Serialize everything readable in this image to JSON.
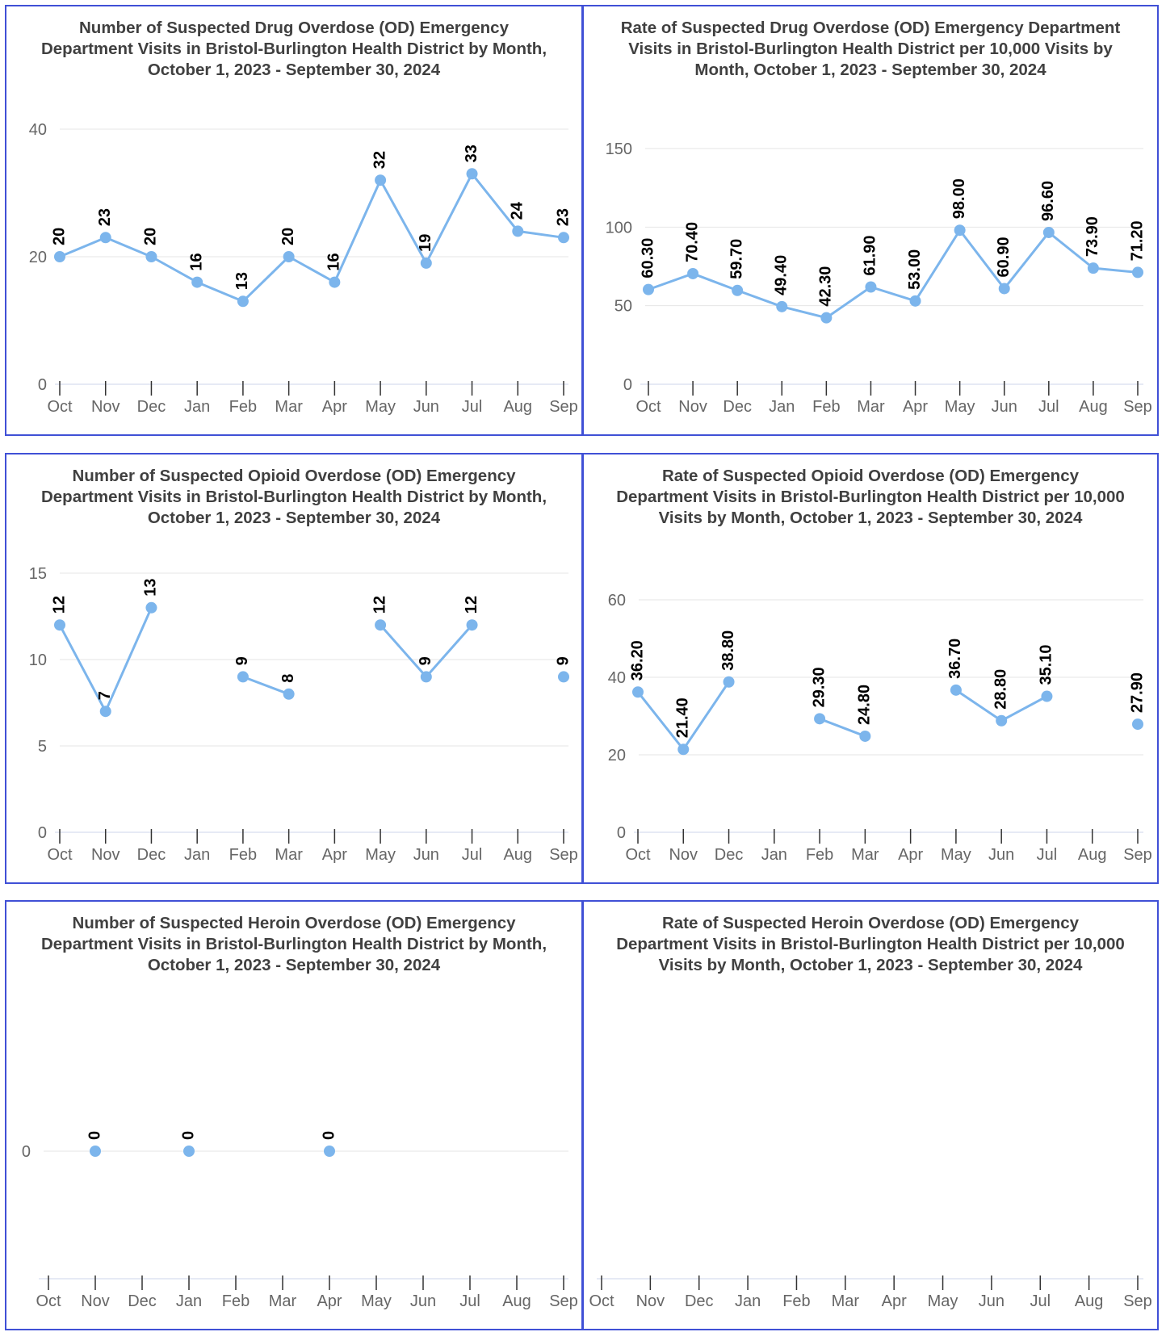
{
  "charts": [
    {
      "title": "Number of Suspected Drug Overdose (OD) Emergency Department Visits in Bristol-Burlington Health District by Month, October 1, 2023 - September 30, 2024"
    },
    {
      "title": "Rate of Suspected Drug Overdose (OD) Emergency Department Visits in Bristol-Burlington Health District per 10,000 Visits by Month, October 1, 2023 - September 30, 2024"
    },
    {
      "title": "Number of Suspected Opioid Overdose (OD) Emergency Department Visits in Bristol-Burlington Health District by Month, October 1, 2023 - September 30, 2024"
    },
    {
      "title": "Rate of Suspected Opioid Overdose (OD) Emergency Department Visits in Bristol-Burlington Health District per 10,000 Visits by Month, October 1, 2023 - September 30, 2024"
    },
    {
      "title": "Number of Suspected Heroin Overdose (OD) Emergency Department Visits in Bristol-Burlington Health District by Month, October 1, 2023 - September 30, 2024"
    },
    {
      "title": "Rate of Suspected Heroin Overdose (OD) Emergency Department Visits in Bristol-Burlington Health District per 10,000 Visits by Month, October 1, 2023 - September 30, 2024"
    }
  ],
  "colors": {
    "line": "#7cb5ec",
    "border": "#4050d6",
    "grid": "#e6e6e6",
    "axis": "#ccd6eb",
    "tick_text": "#666666",
    "label_text": "#000000"
  },
  "chart_data": [
    {
      "type": "line",
      "title": "Number of Suspected Drug Overdose (OD) Emergency Department Visits in Bristol-Burlington Health District by Month, October 1, 2023 - September 30, 2024",
      "categories": [
        "Oct",
        "Nov",
        "Dec",
        "Jan",
        "Feb",
        "Mar",
        "Apr",
        "May",
        "Jun",
        "Jul",
        "Aug",
        "Sep"
      ],
      "series": [
        {
          "values": [
            20,
            23,
            20,
            16,
            13,
            20,
            16,
            32,
            19,
            33,
            24,
            23
          ]
        }
      ],
      "labels": [
        "20",
        "23",
        "20",
        "16",
        "13",
        "20",
        "16",
        "32",
        "19",
        "33",
        "24",
        "23"
      ],
      "yticks": [
        0,
        20,
        40
      ],
      "ylim": [
        0,
        40
      ],
      "grid": true,
      "legend": "none"
    },
    {
      "type": "line",
      "title": "Rate of Suspected Drug Overdose (OD) Emergency Department Visits in Bristol-Burlington Health District per 10,000 Visits by Month, October 1, 2023 - September 30, 2024",
      "categories": [
        "Oct",
        "Nov",
        "Dec",
        "Jan",
        "Feb",
        "Mar",
        "Apr",
        "May",
        "Jun",
        "Jul",
        "Aug",
        "Sep"
      ],
      "series": [
        {
          "values": [
            60.3,
            70.4,
            59.7,
            49.4,
            42.3,
            61.9,
            53.0,
            98.0,
            60.9,
            96.6,
            73.9,
            71.2
          ]
        }
      ],
      "labels": [
        "60.30",
        "70.40",
        "59.70",
        "49.40",
        "42.30",
        "61.90",
        "53.00",
        "98.00",
        "60.90",
        "96.60",
        "73.90",
        "71.20"
      ],
      "yticks": [
        0,
        50,
        100,
        150
      ],
      "ylim": [
        0,
        150
      ],
      "grid": true,
      "legend": "none"
    },
    {
      "type": "line",
      "title": "Number of Suspected Opioid Overdose (OD) Emergency Department Visits in Bristol-Burlington Health District by Month, October 1, 2023 - September 30, 2024",
      "categories": [
        "Oct",
        "Nov",
        "Dec",
        "Jan",
        "Feb",
        "Mar",
        "Apr",
        "May",
        "Jun",
        "Jul",
        "Aug",
        "Sep"
      ],
      "series": [
        {
          "values": [
            12,
            7,
            13,
            null,
            9,
            8,
            null,
            12,
            9,
            12,
            null,
            9
          ]
        }
      ],
      "labels": [
        "12",
        "7",
        "13",
        null,
        "9",
        "8",
        null,
        "12",
        "9",
        "12",
        null,
        "9"
      ],
      "yticks": [
        0,
        5,
        10,
        15
      ],
      "ylim": [
        0,
        15
      ],
      "grid": true,
      "legend": "none"
    },
    {
      "type": "line",
      "title": "Rate of Suspected Opioid Overdose (OD) Emergency Department Visits in Bristol-Burlington Health District per 10,000 Visits by Month, October 1, 2023 - September 30, 2024",
      "categories": [
        "Oct",
        "Nov",
        "Dec",
        "Jan",
        "Feb",
        "Mar",
        "Apr",
        "May",
        "Jun",
        "Jul",
        "Aug",
        "Sep"
      ],
      "series": [
        {
          "values": [
            36.2,
            21.4,
            38.8,
            null,
            29.3,
            24.8,
            null,
            36.7,
            28.8,
            35.1,
            null,
            27.9
          ]
        }
      ],
      "labels": [
        "36.20",
        "21.40",
        "38.80",
        null,
        "29.30",
        "24.80",
        null,
        "36.70",
        "28.80",
        "35.10",
        null,
        "27.90"
      ],
      "yticks": [
        0,
        20,
        40,
        60
      ],
      "ylim": [
        0,
        60
      ],
      "grid": true,
      "legend": "none"
    },
    {
      "type": "line",
      "title": "Number of Suspected Heroin Overdose (OD) Emergency Department Visits in Bristol-Burlington Health District by Month, October 1, 2023 - September 30, 2024",
      "categories": [
        "Oct",
        "Nov",
        "Dec",
        "Jan",
        "Feb",
        "Mar",
        "Apr",
        "May",
        "Jun",
        "Jul",
        "Aug",
        "Sep"
      ],
      "series": [
        {
          "values": [
            null,
            0,
            null,
            0,
            null,
            null,
            0,
            null,
            null,
            null,
            null,
            null
          ]
        }
      ],
      "labels": [
        null,
        "0",
        null,
        "0",
        null,
        null,
        "0",
        null,
        null,
        null,
        null,
        null
      ],
      "yticks": [
        0
      ],
      "ylim": [
        -1,
        1
      ],
      "grid": true,
      "legend": "none"
    },
    {
      "type": "line",
      "title": "Rate of Suspected Heroin Overdose (OD) Emergency Department Visits in Bristol-Burlington Health District per 10,000 Visits by Month, October 1, 2023 - September 30, 2024",
      "categories": [
        "Oct",
        "Nov",
        "Dec",
        "Jan",
        "Feb",
        "Mar",
        "Apr",
        "May",
        "Jun",
        "Jul",
        "Aug",
        "Sep"
      ],
      "series": [
        {
          "values": [
            null,
            null,
            null,
            null,
            null,
            null,
            null,
            null,
            null,
            null,
            null,
            null
          ]
        }
      ],
      "labels": [
        null,
        null,
        null,
        null,
        null,
        null,
        null,
        null,
        null,
        null,
        null,
        null
      ],
      "yticks": [],
      "ylim": [
        0,
        1
      ],
      "grid": false,
      "legend": "none"
    }
  ]
}
